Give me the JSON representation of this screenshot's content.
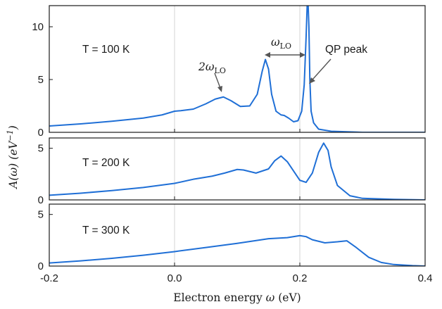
{
  "chart_data": [
    {
      "type": "line",
      "panel": "top",
      "label": "T = 100 K",
      "ylim": [
        0,
        12
      ],
      "yticks": [
        0,
        5,
        10
      ],
      "annotations": [
        "2ωLO",
        "ωLO",
        "QP peak"
      ],
      "series": [
        {
          "color": "#1f6fd6",
          "x": [
            -0.2,
            -0.15,
            -0.1,
            -0.05,
            -0.02,
            0.0,
            0.01,
            0.03,
            0.05,
            0.065,
            0.078,
            0.09,
            0.105,
            0.12,
            0.132,
            0.14,
            0.145,
            0.15,
            0.155,
            0.162,
            0.17,
            0.175,
            0.182,
            0.19,
            0.197,
            0.203,
            0.207,
            0.21,
            0.212,
            0.213,
            0.2145,
            0.216,
            0.218,
            0.222,
            0.23,
            0.25,
            0.3,
            0.4
          ],
          "y": [
            0.6,
            0.8,
            1.05,
            1.35,
            1.65,
            2.0,
            2.05,
            2.2,
            2.7,
            3.15,
            3.35,
            3.0,
            2.45,
            2.5,
            3.6,
            5.8,
            6.9,
            6.0,
            3.6,
            2.0,
            1.65,
            1.6,
            1.35,
            1.0,
            1.1,
            2.0,
            4.5,
            9.0,
            12.5,
            12.5,
            10.0,
            5.0,
            2.0,
            0.9,
            0.3,
            0.1,
            0.0,
            0.0
          ]
        }
      ]
    },
    {
      "type": "line",
      "panel": "middle",
      "label": "T = 200 K",
      "ylim": [
        0,
        6
      ],
      "yticks": [
        0,
        5
      ],
      "series": [
        {
          "color": "#1f6fd6",
          "x": [
            -0.2,
            -0.15,
            -0.1,
            -0.05,
            0.0,
            0.03,
            0.06,
            0.08,
            0.1,
            0.11,
            0.13,
            0.15,
            0.16,
            0.17,
            0.18,
            0.2,
            0.21,
            0.22,
            0.23,
            0.238,
            0.245,
            0.25,
            0.26,
            0.28,
            0.3,
            0.35,
            0.4
          ],
          "y": [
            0.45,
            0.65,
            0.9,
            1.2,
            1.6,
            2.0,
            2.3,
            2.6,
            2.95,
            2.9,
            2.6,
            3.0,
            3.8,
            4.25,
            3.7,
            1.9,
            1.7,
            2.6,
            4.6,
            5.5,
            4.8,
            3.2,
            1.4,
            0.4,
            0.15,
            0.05,
            0.0
          ]
        }
      ]
    },
    {
      "type": "line",
      "panel": "bottom",
      "label": "T = 300 K",
      "ylim": [
        0,
        6
      ],
      "yticks": [
        0,
        5
      ],
      "series": [
        {
          "color": "#1f6fd6",
          "x": [
            -0.2,
            -0.15,
            -0.1,
            -0.05,
            0.0,
            0.05,
            0.1,
            0.15,
            0.18,
            0.2,
            0.21,
            0.22,
            0.24,
            0.26,
            0.275,
            0.29,
            0.31,
            0.33,
            0.35,
            0.38,
            0.4
          ],
          "y": [
            0.3,
            0.5,
            0.75,
            1.05,
            1.4,
            1.8,
            2.2,
            2.65,
            2.75,
            2.95,
            2.85,
            2.55,
            2.25,
            2.35,
            2.45,
            1.8,
            0.85,
            0.35,
            0.15,
            0.04,
            0.0
          ]
        }
      ]
    }
  ],
  "axes": {
    "xlim": [
      -0.2,
      0.4
    ],
    "xticks": [
      -0.2,
      0.0,
      0.2,
      0.4
    ],
    "xticklabels": [
      "-0.2",
      "0.0",
      "0.2",
      "0.4"
    ],
    "xlabel": "Electron energy ω (eV)",
    "ylabel": "A(ω) (eV⁻¹)",
    "vgrid": [
      0.0,
      0.2
    ]
  },
  "labels": {
    "top": "T = 100 K",
    "middle": "T = 200 K",
    "bottom": "T = 300 K",
    "two_omega_lo_main": "2ω",
    "omega_lo_main": "ω",
    "lo_sub": "LO",
    "qp_peak": "QP peak",
    "xlabel_main": "Electron energy ",
    "xlabel_omega": "ω",
    "xlabel_unit": " (eV)",
    "ylabel_main": "A(ω) (eV",
    "ylabel_exp": "−1",
    "ylabel_close": ")"
  },
  "colors": {
    "curve": "#1f6fd6",
    "frame": "#1a1a1a",
    "grid": "#c8c8c8",
    "arrow": "#555555"
  }
}
